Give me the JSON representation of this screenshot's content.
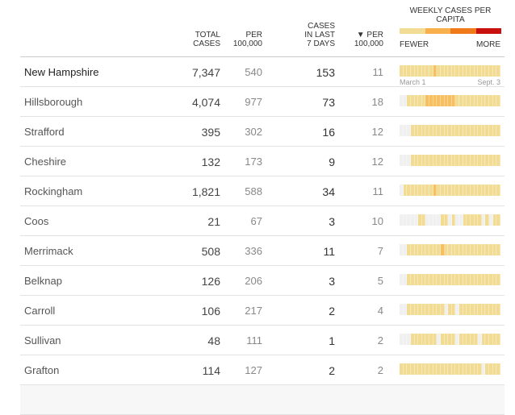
{
  "header": {
    "total_cases": [
      "Total",
      "Cases"
    ],
    "per100k": [
      "Per",
      "100,000"
    ],
    "cases7": [
      "Cases",
      "in last",
      "7 days"
    ],
    "per100k_7": [
      "▼ Per",
      "100,000"
    ],
    "legend_title": "Weekly cases per capita",
    "fewer": "FEWER",
    "more": "MORE",
    "scale_colors": [
      "#f2dc94",
      "#f8b04c",
      "#f07a1a",
      "#c8100f"
    ]
  },
  "timeline": {
    "start": "March 1",
    "end": "Sept. 3"
  },
  "level_colors": {
    "0": "#f0f0f0",
    "1": "#f2dc94",
    "2": "#f8bf60"
  },
  "rows": [
    {
      "name": "New Hampshire",
      "total": "7,347",
      "per100k": "540",
      "cases7": "153",
      "per100k_7": "11",
      "weeks": "111111111211111111111111111"
    },
    {
      "name": "Hillsborough",
      "total": "4,074",
      "per100k": "977",
      "cases7": "73",
      "per100k_7": "18",
      "weeks": "001111122222222111111111111"
    },
    {
      "name": "Strafford",
      "total": "395",
      "per100k": "302",
      "cases7": "16",
      "per100k_7": "12",
      "weeks": "000111111111111111111111111"
    },
    {
      "name": "Cheshire",
      "total": "132",
      "per100k": "173",
      "cases7": "9",
      "per100k_7": "12",
      "weeks": "000111111111111111111111111"
    },
    {
      "name": "Rockingham",
      "total": "1,821",
      "per100k": "588",
      "cases7": "34",
      "per100k_7": "11",
      "weeks": "011111111211111111111111111"
    },
    {
      "name": "Coos",
      "total": "21",
      "per100k": "67",
      "cases7": "3",
      "per100k_7": "10",
      "weeks": "000001100001101001111101011"
    },
    {
      "name": "Merrimack",
      "total": "508",
      "per100k": "336",
      "cases7": "11",
      "per100k_7": "7",
      "weeks": "001111111112111111111111111"
    },
    {
      "name": "Belknap",
      "total": "126",
      "per100k": "206",
      "cases7": "3",
      "per100k_7": "5",
      "weeks": "001111111111111111111111111"
    },
    {
      "name": "Carroll",
      "total": "106",
      "per100k": "217",
      "cases7": "2",
      "per100k_7": "4",
      "weeks": "001111111111011011111111111"
    },
    {
      "name": "Sullivan",
      "total": "48",
      "per100k": "111",
      "cases7": "1",
      "per100k_7": "2",
      "weeks": "000111111101111011111011111"
    },
    {
      "name": "Grafton",
      "total": "114",
      "per100k": "127",
      "cases7": "2",
      "per100k_7": "2",
      "weeks": "111111111111111111111101111"
    }
  ]
}
